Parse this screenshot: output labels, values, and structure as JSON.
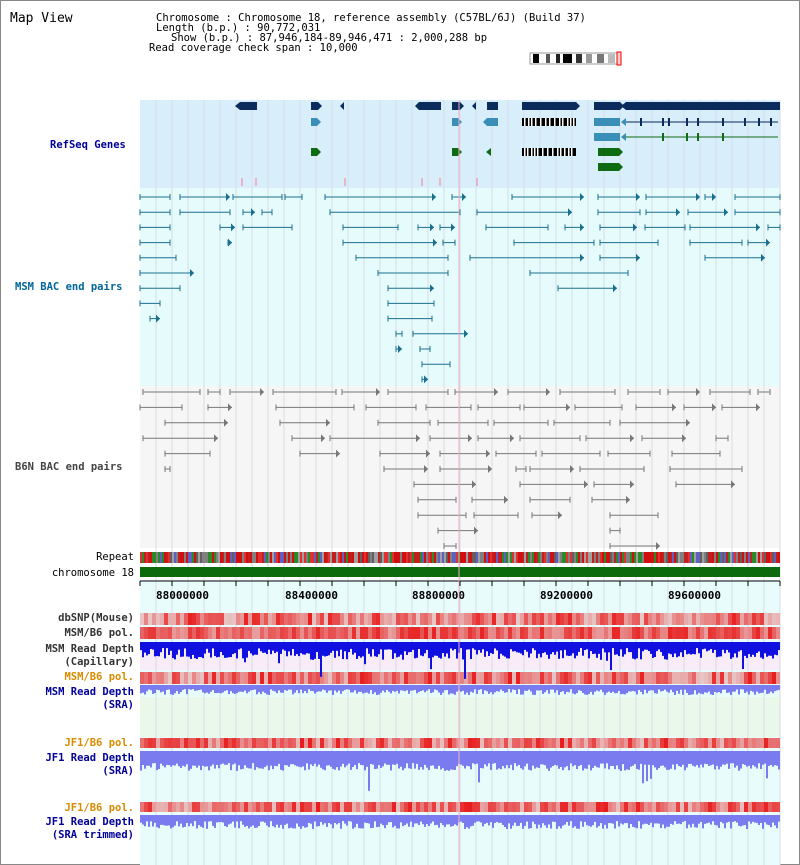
{
  "title": "Map View",
  "header": {
    "lines": [
      "Chromosome    : Chromosome 18, reference assembly (C57BL/6J) (Build 37)",
      "Length (b.p.) : 90,772,031",
      "Show (b.p.) : 87,946,184-89,946,471 : 2,000,288 bp",
      "Read coverage check span : 10,000"
    ]
  },
  "view": {
    "start": 87946184,
    "end": 89946471,
    "axis_ticks": [
      "88000000",
      "88400000",
      "88800000",
      "89200000",
      "89600000"
    ]
  },
  "colors": {
    "refseq_bg": "#d8eefa",
    "bac_bg": "#e6fcfc",
    "grid": "#cfd8e0",
    "refseq_label": "#000099",
    "msm_label": "#006699",
    "b6n_label": "#333333",
    "refseq_gene": "#0a2b5c",
    "refseq_mid": "#3a8fb8",
    "refseq_green": "#0e6b12",
    "bac_msm": "#1a6f8f",
    "bac_b6n": "#777777",
    "chromosome": "#0c6a0c",
    "snp": "#e35050",
    "depth_blue": "#1010e0",
    "depth_light": "#7b7bf0",
    "jf1_label": "#d98c00"
  },
  "tracks": {
    "refseq": "RefSeq Genes",
    "msm_bac": "MSM BAC end pairs",
    "b6n_bac": "B6N BAC end pairs",
    "repeat": "Repeat",
    "chromosome": "chromosome 18",
    "dbsnp": "dbSNP(Mouse)",
    "msm_pol": "MSM/B6 pol.",
    "msm_depth_cap": [
      "MSM Read Depth",
      "(Capillary)"
    ],
    "msm_pol2": "MSM/B6 pol.",
    "msm_depth_sra": [
      "MSM Read Depth",
      "(SRA)"
    ],
    "jf1_pol": "JF1/B6 pol.",
    "jf1_depth_sra": [
      "JF1 Read Depth",
      "(SRA)"
    ],
    "jf1_pol2": "JF1/B6 pol.",
    "jf1_depth_trim": [
      "JF1 Read Depth",
      "(SRA trimmed)"
    ]
  }
}
